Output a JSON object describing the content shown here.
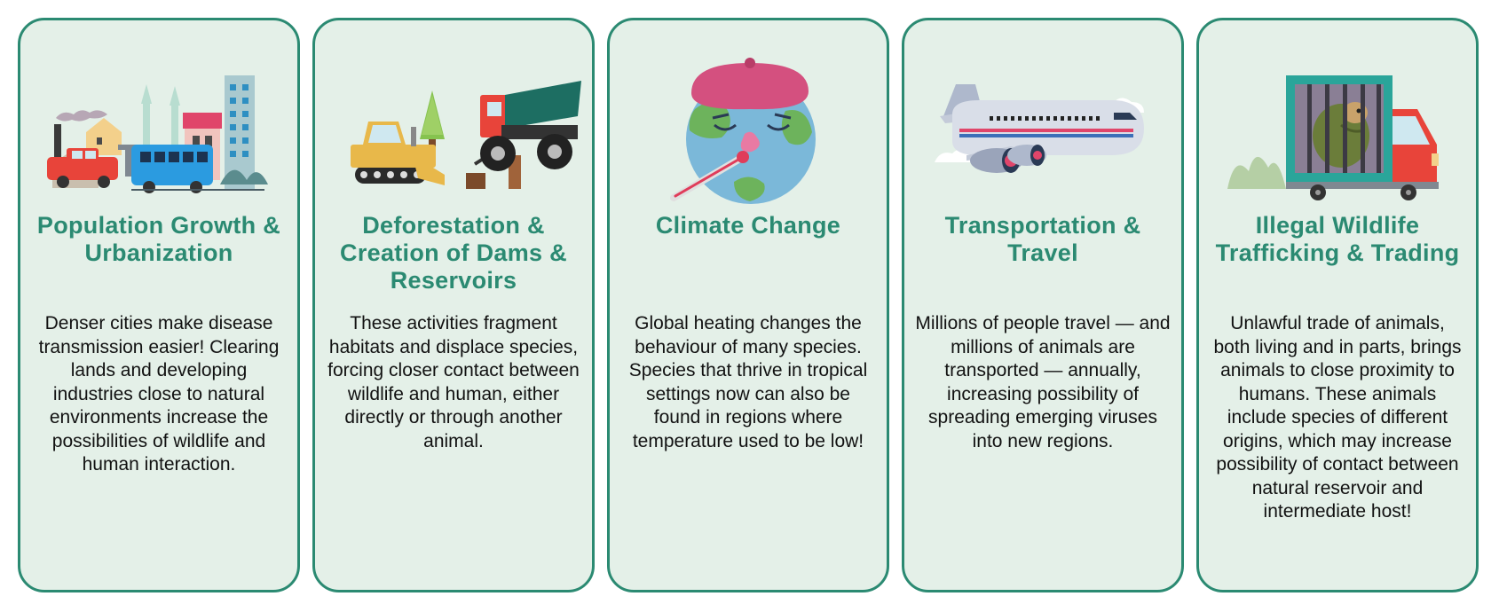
{
  "colors": {
    "border": "#2b8a72",
    "card_bg": "#e4f0e8",
    "title": "#2b8a72",
    "text": "#111111"
  },
  "cards": [
    {
      "illustration": "city-traffic-illustration",
      "title": "Population Growth & Urbanization",
      "body": "Denser cities make disease transmission easier! Clearing lands and developing industries close to natural environments increase the possibilities of wildlife and human interaction."
    },
    {
      "illustration": "bulldozer-truck-illustration",
      "title": "Deforestation & Creation of Dams & Reservoirs",
      "body": "These activities fragment habitats and displace species, forcing closer contact between wildlife and human, either directly or through another animal."
    },
    {
      "illustration": "sick-earth-illustration",
      "title": "Climate Change",
      "body": "Global heating changes the behaviour of many species. Species that thrive in tropical settings now can also be found in regions where temperature used to be low!"
    },
    {
      "illustration": "airplane-illustration",
      "title": "Transportation & Travel",
      "body": "Millions of people travel — and millions of animals are transported — annually, increasing possibility of spreading emerging viruses into new regions."
    },
    {
      "illustration": "caged-pangolin-truck-illustration",
      "title": "Illegal Wildlife Trafficking & Trading",
      "body": "Unlawful trade of animals, both living and in parts, brings animals to close proximity to humans. These animals include species of different origins, which may increase possibility of contact between natural reservoir and intermediate host!"
    }
  ]
}
